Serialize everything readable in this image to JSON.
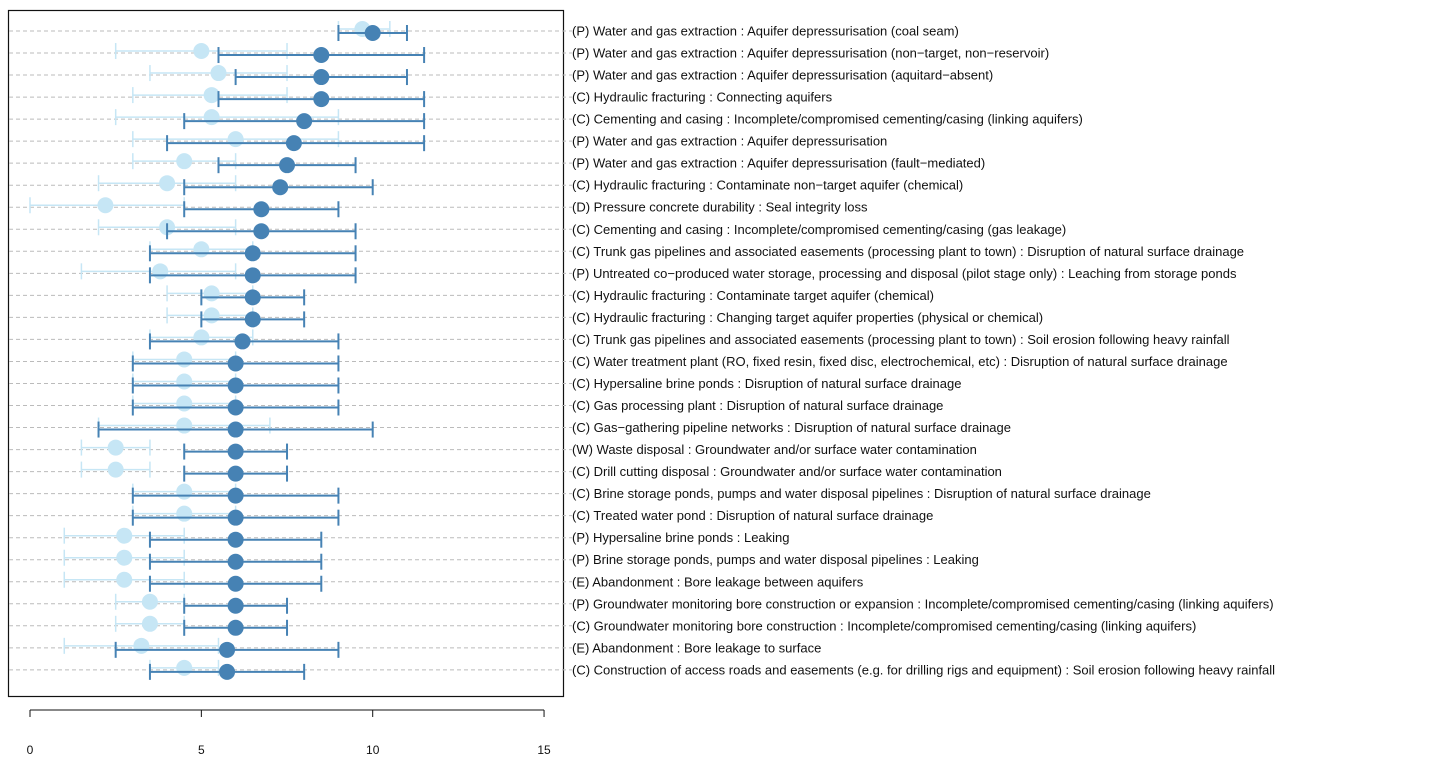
{
  "chart_data": {
    "type": "scatter",
    "subtype": "dot-interval",
    "title": "",
    "xlabel": "",
    "ylabel": "",
    "xlim": [
      -0.6,
      15.6
    ],
    "xticks": [
      0,
      5,
      10,
      15
    ],
    "xtick_labels": [
      "0",
      "5",
      "10",
      "15"
    ],
    "grid": "horizontal dashed",
    "colors": {
      "dark": "#4682b4",
      "light": "#c6e6f5",
      "grid": "#bbbbbb",
      "axis": "#111111"
    },
    "categories": [
      "(P) Water and gas extraction : Aquifer depressurisation (coal seam)",
      "(P) Water and gas extraction : Aquifer depressurisation (non−target, non−reservoir)",
      "(P) Water and gas extraction : Aquifer depressurisation (aquitard−absent)",
      "(C) Hydraulic fracturing : Connecting aquifers",
      "(C) Cementing and casing : Incomplete/compromised cementing/casing (linking aquifers)",
      "(P) Water and gas extraction : Aquifer depressurisation",
      "(P) Water and gas extraction : Aquifer depressurisation (fault−mediated)",
      "(C) Hydraulic fracturing : Contaminate non−target aquifer (chemical)",
      "(D) Pressure concrete durability : Seal integrity loss",
      "(C) Cementing and casing : Incomplete/compromised cementing/casing (gas leakage)",
      "(C) Trunk gas pipelines and associated easements (processing plant to town) : Disruption of natural surface drainage",
      "(P) Untreated co−produced water storage, processing and disposal (pilot stage only) : Leaching from storage ponds",
      "(C) Hydraulic fracturing : Contaminate target aquifer (chemical)",
      "(C) Hydraulic fracturing : Changing target aquifer properties (physical or chemical)",
      "(C) Trunk gas pipelines and associated easements (processing plant to town) : Soil erosion following heavy rainfall",
      "(C) Water treatment plant (RO, fixed resin, fixed disc, electrochemical, etc) : Disruption of natural surface drainage",
      "(C) Hypersaline brine ponds : Disruption of natural surface drainage",
      "(C) Gas processing plant : Disruption of natural surface drainage",
      "(C) Gas−gathering pipeline networks : Disruption of natural surface drainage",
      "(W) Waste disposal : Groundwater and/or surface water contamination",
      "(C) Drill cutting disposal : Groundwater and/or surface water contamination",
      "(C) Brine storage ponds, pumps and water disposal pipelines : Disruption of natural surface drainage",
      "(C) Treated water pond : Disruption of natural surface drainage",
      "(P) Hypersaline brine ponds : Leaking",
      "(P) Brine storage ponds, pumps and water disposal pipelines : Leaking",
      "(E) Abandonment : Bore leakage between aquifers",
      "(P) Groundwater monitoring bore construction or expansion : Incomplete/compromised cementing/casing (linking aquifers)",
      "(C) Groundwater monitoring bore construction : Incomplete/compromised cementing/casing (linking aquifers)",
      "(E) Abandonment : Bore leakage to surface",
      "(C) Construction of access roads and easements (e.g. for drilling rigs and equipment) : Soil erosion following heavy rainfall"
    ],
    "series": [
      {
        "name": "dark",
        "mean": [
          10,
          8.5,
          8.5,
          8.5,
          8,
          7.7,
          7.5,
          7.3,
          6.75,
          6.75,
          6.5,
          6.5,
          6.5,
          6.5,
          6.2,
          6,
          6,
          6,
          6,
          6,
          6,
          6,
          6,
          6,
          6,
          6,
          6,
          6,
          5.75,
          5.75
        ],
        "low": [
          9,
          5.5,
          6,
          5.5,
          4.5,
          4,
          5.5,
          4.5,
          4.5,
          4,
          3.5,
          3.5,
          5,
          5,
          3.5,
          3,
          3,
          3,
          2,
          4.5,
          4.5,
          3,
          3,
          3.5,
          3.5,
          3.5,
          4.5,
          4.5,
          2.5,
          3.5
        ],
        "high": [
          11,
          11.5,
          11,
          11.5,
          11.5,
          11.5,
          9.5,
          10,
          9,
          9.5,
          9.5,
          9.5,
          8,
          8,
          9,
          9,
          9,
          9,
          10,
          7.5,
          7.5,
          9,
          9,
          8.5,
          8.5,
          8.5,
          7.5,
          7.5,
          9,
          8
        ]
      },
      {
        "name": "light",
        "mean": [
          9.7,
          5,
          5.5,
          5.3,
          5.3,
          6,
          4.5,
          4,
          2.2,
          4,
          5,
          3.8,
          5.3,
          5.3,
          5,
          4.5,
          4.5,
          4.5,
          4.5,
          2.5,
          2.5,
          4.5,
          4.5,
          2.75,
          2.75,
          2.75,
          3.5,
          3.5,
          3.25,
          4.5
        ],
        "low": [
          9,
          2.5,
          3.5,
          3,
          2.5,
          3,
          3,
          2,
          0,
          2,
          3.5,
          1.5,
          4,
          4,
          3.5,
          3,
          3,
          3,
          2,
          1.5,
          1.5,
          3,
          3,
          1,
          1,
          1,
          2.5,
          2.5,
          1,
          3.5
        ],
        "high": [
          10.5,
          7.5,
          7.5,
          7.5,
          9,
          9,
          6,
          6,
          4.5,
          6,
          6.5,
          6,
          6.5,
          6.5,
          6.5,
          6,
          6,
          6,
          7,
          3.5,
          3.5,
          6,
          6,
          4.5,
          4.5,
          4.5,
          4.5,
          4.5,
          5.5,
          5.5
        ]
      }
    ]
  }
}
